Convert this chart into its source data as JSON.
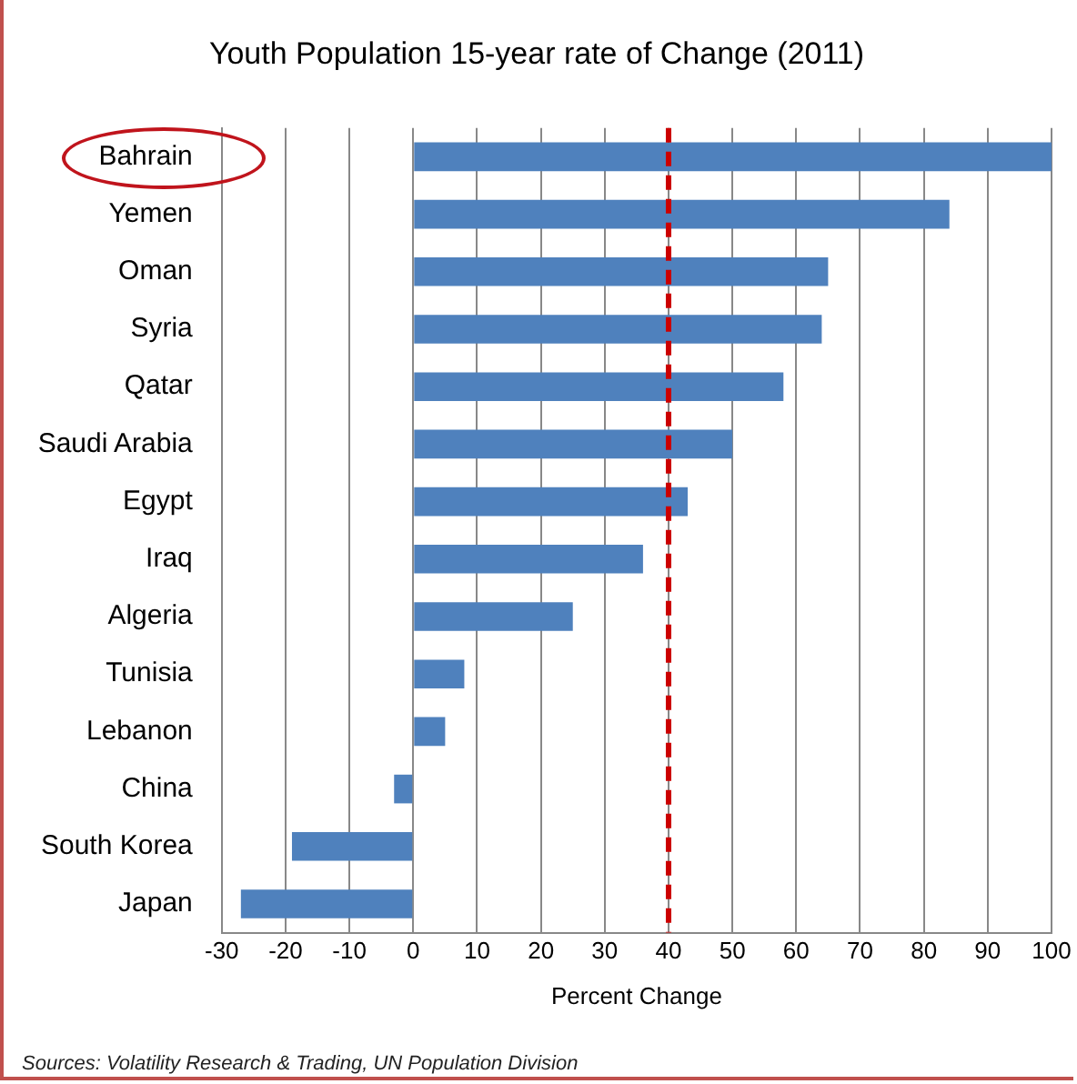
{
  "chart_data": {
    "type": "bar",
    "orientation": "horizontal",
    "title": "Youth Population 15-year rate of Change (2011)",
    "xlabel": "Percent Change",
    "categories": [
      "Bahrain",
      "Yemen",
      "Oman",
      "Syria",
      "Qatar",
      "Saudi Arabia",
      "Egypt",
      "Iraq",
      "Algeria",
      "Tunisia",
      "Lebanon",
      "China",
      "South Korea",
      "Japan"
    ],
    "values": [
      100,
      84,
      65,
      64,
      58,
      50,
      43,
      36,
      25,
      8,
      5,
      -3,
      -19,
      -27
    ],
    "color": "#4f81bd",
    "xlim": [
      -30,
      100
    ],
    "xticks": [
      -30,
      -20,
      -10,
      0,
      10,
      20,
      30,
      40,
      50,
      60,
      70,
      80,
      90,
      100
    ],
    "grid": "x",
    "ref_lines": [
      {
        "axis": "x",
        "value": 40,
        "color": "#cc0000",
        "line_style": "dashed"
      }
    ],
    "annotations": [
      "Sources: Volatility Research & Trading, UN Population Division"
    ]
  }
}
